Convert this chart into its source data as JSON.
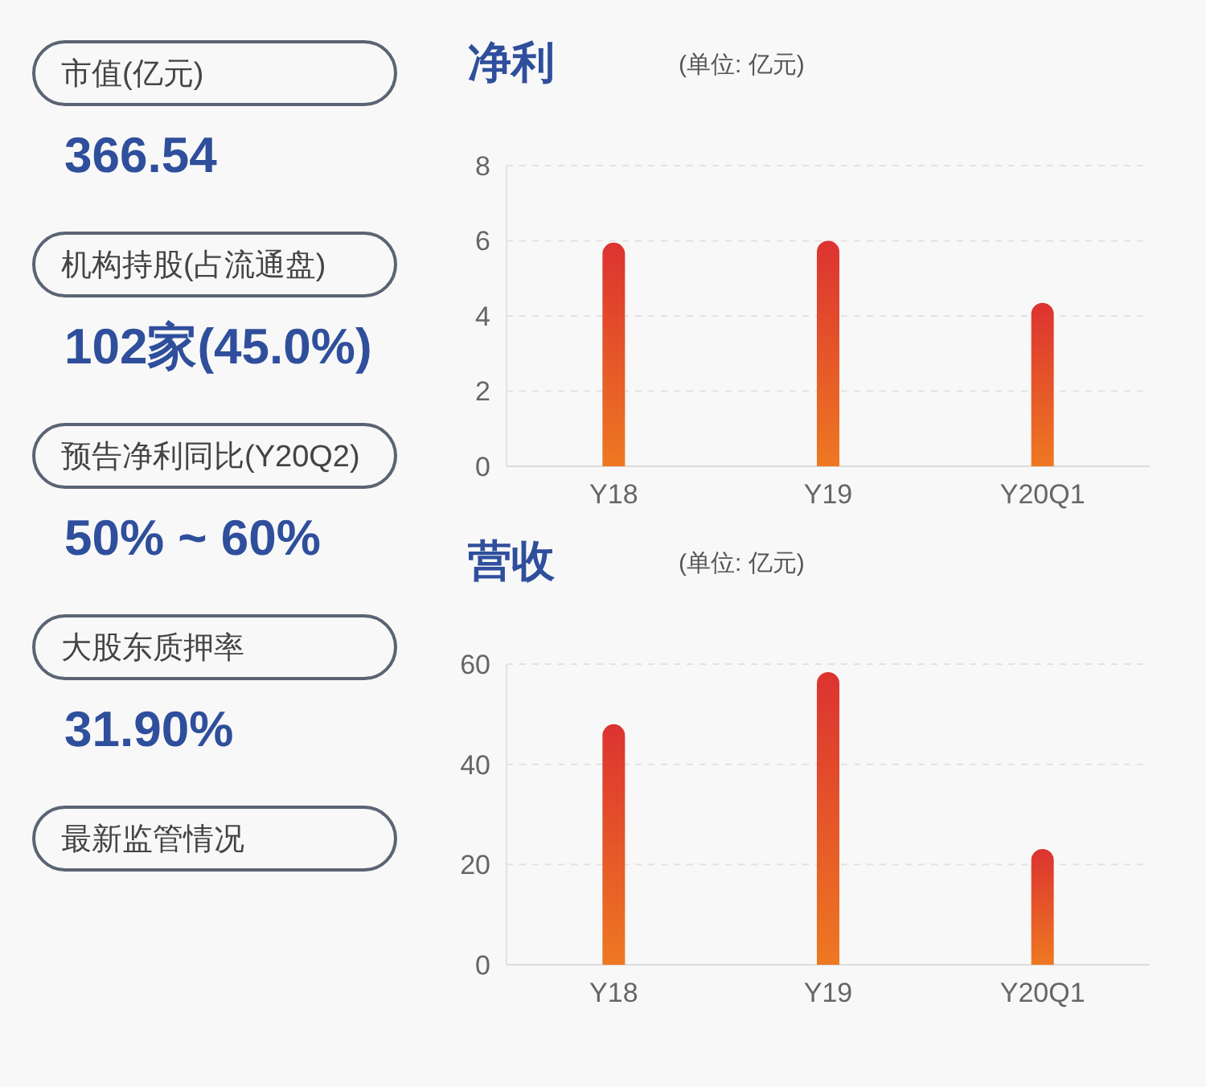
{
  "chart_data": [
    {
      "type": "other",
      "annotations": [
        "市值(亿元)",
        "366.54",
        "机构持股(占流通盘)",
        "102家(45.0%)",
        "预告净利同比(Y20Q2)",
        "50% ~ 60%",
        "大股东质押率",
        "31.90%",
        "最新监管情况"
      ]
    },
    {
      "type": "bar",
      "title": "净利",
      "subtitle": "(单位: 亿元)",
      "categories": [
        "Y18",
        "Y19",
        "Y20Q1"
      ],
      "values": [
        5.95,
        6.0,
        4.35
      ],
      "color": "#dc3330",
      "ylim": [
        0,
        8
      ],
      "yticks": [
        0,
        2,
        4,
        6,
        8
      ],
      "grid": "y"
    },
    {
      "type": "bar",
      "title": "营收",
      "subtitle": "(单位: 亿元)",
      "categories": [
        "Y18",
        "Y19",
        "Y20Q1"
      ],
      "values": [
        48,
        58.4,
        23.1
      ],
      "color": "#dc3330",
      "ylim": [
        0,
        60
      ],
      "yticks": [
        0,
        20,
        40,
        60
      ],
      "grid": "y"
    }
  ]
}
